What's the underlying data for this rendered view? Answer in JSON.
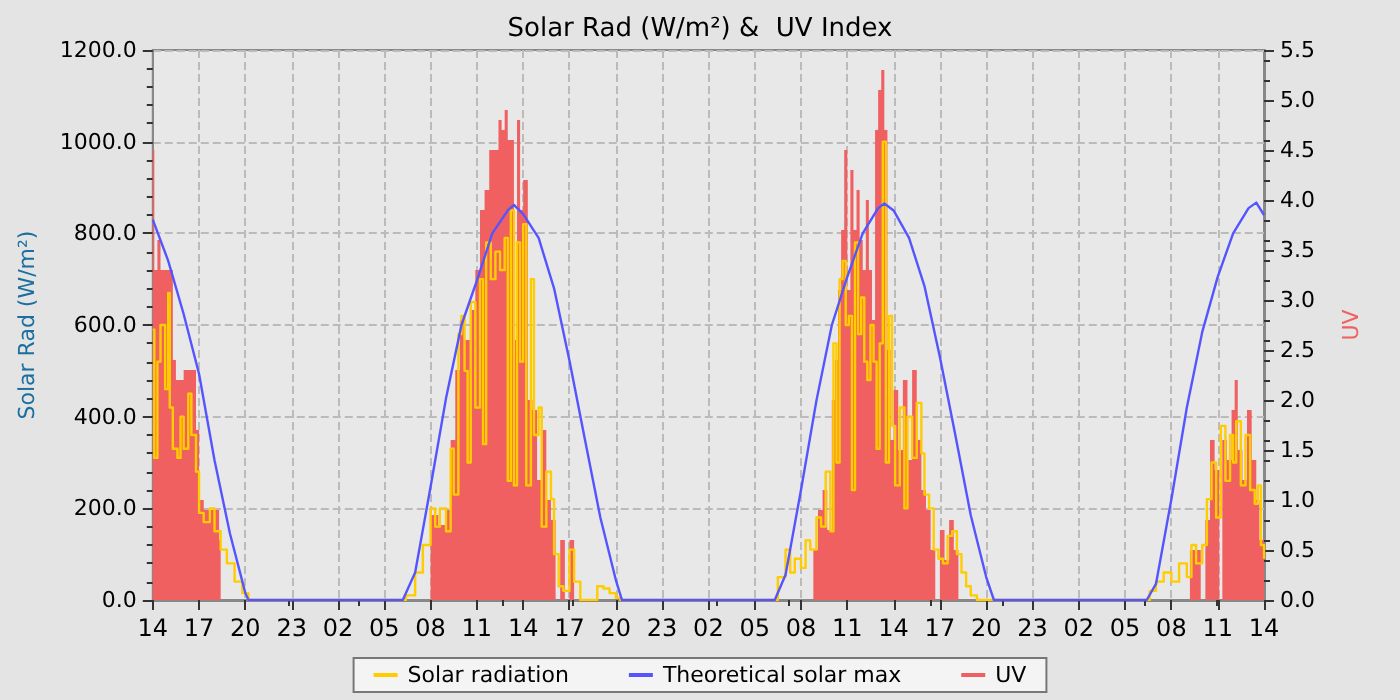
{
  "chart_data": {
    "type": "line",
    "title": "Solar Rad (W/m²) &  UV Index",
    "ylabel": "Solar Rad (W/m²)",
    "y2label": "UV",
    "xlim": [
      "--01-01T14:00",
      "--01-04T14:00"
    ],
    "xticks": [
      {
        "value": "--01-01T14:00",
        "label": "14"
      },
      {
        "value": "--01-01T17:00",
        "label": "17"
      },
      {
        "value": "--01-01T20:00",
        "label": "20"
      },
      {
        "value": "--01-01T23:00",
        "label": "23"
      },
      {
        "value": "--01-02T02:00",
        "label": "02"
      },
      {
        "value": "--01-02T05:00",
        "label": "05"
      },
      {
        "value": "--01-02T08:00",
        "label": "08"
      },
      {
        "value": "--01-02T11:00",
        "label": "11"
      },
      {
        "value": "--01-02T14:00",
        "label": "14"
      },
      {
        "value": "--01-02T17:00",
        "label": "17"
      },
      {
        "value": "--01-02T20:00",
        "label": "20"
      },
      {
        "value": "--01-02T23:00",
        "label": "23"
      },
      {
        "value": "--01-03T02:00",
        "label": "02"
      },
      {
        "value": "--01-03T05:00",
        "label": "05"
      },
      {
        "value": "--01-03T08:00",
        "label": "08"
      },
      {
        "value": "--01-03T11:00",
        "label": "11"
      },
      {
        "value": "--01-03T14:00",
        "label": "14"
      },
      {
        "value": "--01-03T17:00",
        "label": "17"
      },
      {
        "value": "--01-03T20:00",
        "label": "20"
      },
      {
        "value": "--01-03T23:00",
        "label": "23"
      },
      {
        "value": "--01-04T02:00",
        "label": "02"
      },
      {
        "value": "--01-04T05:00",
        "label": "05"
      },
      {
        "value": "--01-04T08:00",
        "label": "08"
      },
      {
        "value": "--01-04T11:00",
        "label": "11"
      },
      {
        "value": "--01-04T14:00",
        "label": "14"
      }
    ],
    "ylim": [
      0,
      1200
    ],
    "yticks": [
      {
        "value": 0,
        "label": "0.0"
      },
      {
        "value": 200,
        "label": "200.0"
      },
      {
        "value": 400,
        "label": "400.0"
      },
      {
        "value": 600,
        "label": "600.0"
      },
      {
        "value": 800,
        "label": "800.0"
      },
      {
        "value": 1000,
        "label": "1000.0"
      },
      {
        "value": 1200,
        "label": "1200.0"
      }
    ],
    "y2lim": [
      0,
      5.5
    ],
    "y2ticks": [
      {
        "value": 0,
        "label": "0.0"
      },
      {
        "value": 0.5,
        "label": "0.5"
      },
      {
        "value": 1,
        "label": "1.0"
      },
      {
        "value": 1.5,
        "label": "1.5"
      },
      {
        "value": 2,
        "label": "2.0"
      },
      {
        "value": 2.5,
        "label": "2.5"
      },
      {
        "value": 3,
        "label": "3.0"
      },
      {
        "value": 3.5,
        "label": "3.5"
      },
      {
        "value": 4,
        "label": "4.0"
      },
      {
        "value": 4.5,
        "label": "4.5"
      },
      {
        "value": 5,
        "label": "5.0"
      },
      {
        "value": 5.5,
        "label": "5.5"
      }
    ],
    "grid": true,
    "legend": "bottom",
    "marker": "none",
    "series": [
      {
        "name": "Solar radiation",
        "type": "step",
        "color": "#ffcc00",
        "x": [
          "--01-01T14:00",
          "--01-01T14:06",
          "--01-01T14:18",
          "--01-01T14:30",
          "--01-01T14:48",
          "--01-01T15:00",
          "--01-01T15:06",
          "--01-01T15:18",
          "--01-01T15:36",
          "--01-01T15:48",
          "--01-01T16:00",
          "--01-01T16:18",
          "--01-01T16:30",
          "--01-01T16:48",
          "--01-01T17:00",
          "--01-01T17:18",
          "--01-01T17:42",
          "--01-01T18:00",
          "--01-01T18:24",
          "--01-01T18:48",
          "--01-01T19:18",
          "--01-01T19:48",
          "--01-01T20:12",
          "--01-02T06:24",
          "--01-02T07:00",
          "--01-02T07:30",
          "--01-02T08:00",
          "--01-02T08:18",
          "--01-02T08:36",
          "--01-02T09:00",
          "--01-02T09:18",
          "--01-02T09:30",
          "--01-02T09:48",
          "--01-02T10:00",
          "--01-02T10:12",
          "--01-02T10:24",
          "--01-02T10:36",
          "--01-02T10:54",
          "--01-02T11:12",
          "--01-02T11:24",
          "--01-02T11:36",
          "--01-02T11:54",
          "--01-02T12:12",
          "--01-02T12:30",
          "--01-02T12:48",
          "--01-02T13:00",
          "--01-02T13:12",
          "--01-02T13:24",
          "--01-02T13:36",
          "--01-02T13:48",
          "--01-02T14:00",
          "--01-02T14:12",
          "--01-02T14:30",
          "--01-02T14:42",
          "--01-02T15:00",
          "--01-02T15:12",
          "--01-02T15:30",
          "--01-02T15:48",
          "--01-02T16:00",
          "--01-02T16:18",
          "--01-02T16:36",
          "--01-02T17:00",
          "--01-02T17:18",
          "--01-02T17:42",
          "--01-02T18:30",
          "--01-02T18:48",
          "--01-02T19:12",
          "--01-02T19:36",
          "--01-02T20:00",
          "--01-02T20:18",
          "--01-03T06:06",
          "--01-03T06:30",
          "--01-03T07:00",
          "--01-03T07:18",
          "--01-03T07:36",
          "--01-03T08:00",
          "--01-03T08:18",
          "--01-03T08:36",
          "--01-03T09:00",
          "--01-03T09:18",
          "--01-03T09:36",
          "--01-03T09:54",
          "--01-03T10:06",
          "--01-03T10:18",
          "--01-03T10:30",
          "--01-03T10:42",
          "--01-03T10:54",
          "--01-03T11:06",
          "--01-03T11:18",
          "--01-03T11:30",
          "--01-03T11:42",
          "--01-03T11:54",
          "--01-03T12:06",
          "--01-03T12:18",
          "--01-03T12:30",
          "--01-03T12:42",
          "--01-03T12:54",
          "--01-03T13:06",
          "--01-03T13:18",
          "--01-03T13:30",
          "--01-03T13:42",
          "--01-03T13:54",
          "--01-03T14:06",
          "--01-03T14:24",
          "--01-03T14:42",
          "--01-03T14:54",
          "--01-03T15:12",
          "--01-03T15:30",
          "--01-03T15:48",
          "--01-03T16:00",
          "--01-03T16:18",
          "--01-03T16:36",
          "--01-03T16:54",
          "--01-03T17:12",
          "--01-03T17:30",
          "--01-03T17:48",
          "--01-03T18:06",
          "--01-03T18:24",
          "--01-03T18:42",
          "--01-03T19:00",
          "--01-03T19:24",
          "--01-04T06:18",
          "--01-04T06:36",
          "--01-04T07:00",
          "--01-04T07:30",
          "--01-04T08:00",
          "--01-04T08:30",
          "--01-04T09:00",
          "--01-04T09:18",
          "--01-04T09:36",
          "--01-04T10:00",
          "--01-04T10:18",
          "--01-04T10:36",
          "--01-04T10:54",
          "--01-04T11:12",
          "--01-04T11:30",
          "--01-04T11:48",
          "--01-04T12:00",
          "--01-04T12:12",
          "--01-04T12:30",
          "--01-04T12:48",
          "--01-04T13:06",
          "--01-04T13:24",
          "--01-04T13:36",
          "--01-04T13:48",
          "--01-04T14:00"
        ],
        "values": [
          590,
          310,
          520,
          600,
          460,
          670,
          420,
          330,
          310,
          400,
          330,
          450,
          360,
          280,
          190,
          170,
          200,
          150,
          110,
          80,
          40,
          15,
          0,
          10,
          60,
          120,
          200,
          160,
          200,
          150,
          330,
          230,
          580,
          620,
          500,
          300,
          650,
          420,
          700,
          340,
          780,
          700,
          760,
          720,
          790,
          260,
          850,
          250,
          780,
          520,
          820,
          250,
          700,
          360,
          420,
          160,
          280,
          220,
          100,
          30,
          20,
          110,
          40,
          0,
          0,
          30,
          25,
          15,
          5,
          0,
          0,
          50,
          110,
          60,
          90,
          70,
          130,
          110,
          180,
          160,
          280,
          150,
          560,
          300,
          700,
          740,
          600,
          620,
          240,
          780,
          580,
          660,
          520,
          480,
          600,
          520,
          330,
          560,
          1000,
          300,
          620,
          380,
          250,
          420,
          200,
          400,
          310,
          430,
          320,
          230,
          200,
          110,
          90,
          80,
          140,
          150,
          100,
          60,
          30,
          10,
          0,
          0,
          20,
          40,
          60,
          40,
          80,
          50,
          120,
          80,
          120,
          220,
          300,
          180,
          380,
          260,
          360,
          300,
          390,
          250,
          360,
          240,
          210,
          250,
          120,
          90
        ]
      },
      {
        "name": "Theoretical solar max",
        "color": "#5555ff",
        "x": [
          "--01-01T14:00",
          "--01-01T15:00",
          "--01-01T16:00",
          "--01-01T17:00",
          "--01-01T18:00",
          "--01-01T19:00",
          "--01-01T20:00",
          "--01-01T20:12",
          "--01-02T06:12",
          "--01-02T07:00",
          "--01-02T08:00",
          "--01-02T09:00",
          "--01-02T10:00",
          "--01-02T11:00",
          "--01-02T12:00",
          "--01-02T13:00",
          "--01-02T13:24",
          "--01-02T14:00",
          "--01-02T15:00",
          "--01-02T16:00",
          "--01-02T17:00",
          "--01-02T18:00",
          "--01-02T19:00",
          "--01-02T20:00",
          "--01-02T20:24",
          "--01-03T06:18",
          "--01-03T07:00",
          "--01-03T08:00",
          "--01-03T09:00",
          "--01-03T10:00",
          "--01-03T11:00",
          "--01-03T12:00",
          "--01-03T13:00",
          "--01-03T13:24",
          "--01-03T14:00",
          "--01-03T15:00",
          "--01-03T16:00",
          "--01-03T17:00",
          "--01-03T18:00",
          "--01-03T19:00",
          "--01-03T20:00",
          "--01-03T20:30",
          "--01-04T06:24",
          "--01-04T07:00",
          "--01-04T08:00",
          "--01-04T09:00",
          "--01-04T10:00",
          "--01-04T11:00",
          "--01-04T12:00",
          "--01-04T13:00",
          "--01-04T13:30",
          "--01-04T14:00"
        ],
        "values": [
          830,
          740,
          624,
          493,
          305,
          145,
          15,
          0,
          0,
          60,
          247,
          440,
          600,
          697,
          800,
          850,
          862,
          842,
          790,
          680,
          522,
          350,
          180,
          44,
          0,
          0,
          55,
          240,
          435,
          600,
          705,
          800,
          855,
          865,
          850,
          790,
          685,
          530,
          360,
          185,
          50,
          0,
          0,
          35,
          220,
          420,
          585,
          705,
          800,
          855,
          867,
          840
        ]
      },
      {
        "name": "UV",
        "type": "area",
        "axis": "y2",
        "color": "#f06060",
        "x": [
          "--01-01T14:00",
          "--01-01T14:06",
          "--01-01T14:18",
          "--01-01T14:30",
          "--01-01T15:12",
          "--01-01T15:18",
          "--01-01T15:30",
          "--01-01T16:00",
          "--01-01T16:48",
          "--01-01T17:00",
          "--01-01T17:18",
          "--01-01T18:00",
          "--01-01T18:18",
          "--01-01T18:24",
          "--01-02T07:54",
          "--01-02T08:00",
          "--01-02T08:30",
          "--01-02T09:00",
          "--01-02T09:18",
          "--01-02T09:36",
          "--01-02T09:54",
          "--01-02T10:12",
          "--01-02T10:36",
          "--01-02T10:54",
          "--01-02T11:12",
          "--01-02T11:30",
          "--01-02T11:48",
          "--01-02T12:06",
          "--01-02T12:24",
          "--01-02T12:36",
          "--01-02T12:48",
          "--01-02T13:00",
          "--01-02T13:12",
          "--01-02T13:24",
          "--01-02T13:36",
          "--01-02T13:48",
          "--01-02T14:00",
          "--01-02T14:18",
          "--01-02T14:36",
          "--01-02T14:54",
          "--01-02T15:12",
          "--01-02T15:30",
          "--01-02T15:48",
          "--01-02T16:06",
          "--01-02T16:24",
          "--01-02T16:42",
          "--01-02T17:00",
          "--01-02T17:18",
          "--01-03T08:42",
          "--01-03T08:48",
          "--01-03T09:06",
          "--01-03T09:24",
          "--01-03T09:42",
          "--01-03T10:00",
          "--01-03T10:12",
          "--01-03T10:24",
          "--01-03T10:36",
          "--01-03T10:48",
          "--01-03T11:00",
          "--01-03T11:12",
          "--01-03T11:24",
          "--01-03T11:36",
          "--01-03T11:48",
          "--01-03T12:00",
          "--01-03T12:12",
          "--01-03T12:24",
          "--01-03T12:36",
          "--01-03T12:48",
          "--01-03T13:00",
          "--01-03T13:12",
          "--01-03T13:24",
          "--01-03T13:36",
          "--01-03T13:48",
          "--01-03T14:00",
          "--01-03T14:18",
          "--01-03T14:36",
          "--01-03T14:54",
          "--01-03T15:12",
          "--01-03T15:30",
          "--01-03T15:48",
          "--01-03T16:06",
          "--01-03T16:24",
          "--01-03T16:42",
          "--01-03T17:00",
          "--01-03T17:18",
          "--01-03T17:36",
          "--01-03T17:54",
          "--01-03T18:12",
          "--01-04T09:00",
          "--01-04T09:12",
          "--01-04T09:36",
          "--01-04T09:54",
          "--01-04T10:12",
          "--01-04T10:30",
          "--01-04T10:48",
          "--01-04T11:06",
          "--01-04T11:18",
          "--01-04T11:36",
          "--01-04T11:54",
          "--01-04T12:06",
          "--01-04T12:18",
          "--01-04T12:36",
          "--01-04T12:54",
          "--01-04T13:12",
          "--01-04T13:30",
          "--01-04T13:42",
          "--01-04T14:00"
        ],
        "values": [
          4.5,
          3.3,
          3.6,
          3.3,
          3.3,
          2.4,
          2.2,
          2.3,
          1.7,
          1.0,
          0.9,
          0.9,
          0.6,
          0,
          0,
          0.85,
          0.75,
          0.9,
          1.6,
          2.3,
          2.8,
          2.6,
          2.9,
          3.3,
          3.9,
          4.1,
          4.5,
          4.5,
          4.8,
          4.7,
          4.9,
          4.6,
          4.6,
          2.6,
          4.8,
          3.9,
          4.2,
          2.0,
          1.9,
          1.2,
          1.7,
          1.0,
          0.8,
          0,
          0.6,
          0,
          0.6,
          0,
          0,
          0.5,
          0.9,
          1.1,
          0.7,
          2.0,
          2.4,
          3.1,
          3.7,
          4.5,
          3.1,
          4.3,
          3.7,
          4.1,
          3.6,
          3.3,
          4.0,
          3.3,
          2.8,
          4.7,
          5.1,
          5.3,
          4.7,
          2.5,
          1.6,
          2.1,
          1.5,
          2.2,
          1.4,
          2.3,
          1.6,
          1.1,
          0.9,
          0.5,
          0,
          0.7,
          0.4,
          0.8,
          0.5,
          0,
          0,
          0.5,
          0.5,
          0,
          0.8,
          1.6,
          1.3,
          0,
          1.6,
          1.4,
          1.9,
          2.2,
          1.5,
          1.2,
          1.9,
          1.4,
          1.0,
          0.6,
          0.6
        ]
      }
    ]
  }
}
